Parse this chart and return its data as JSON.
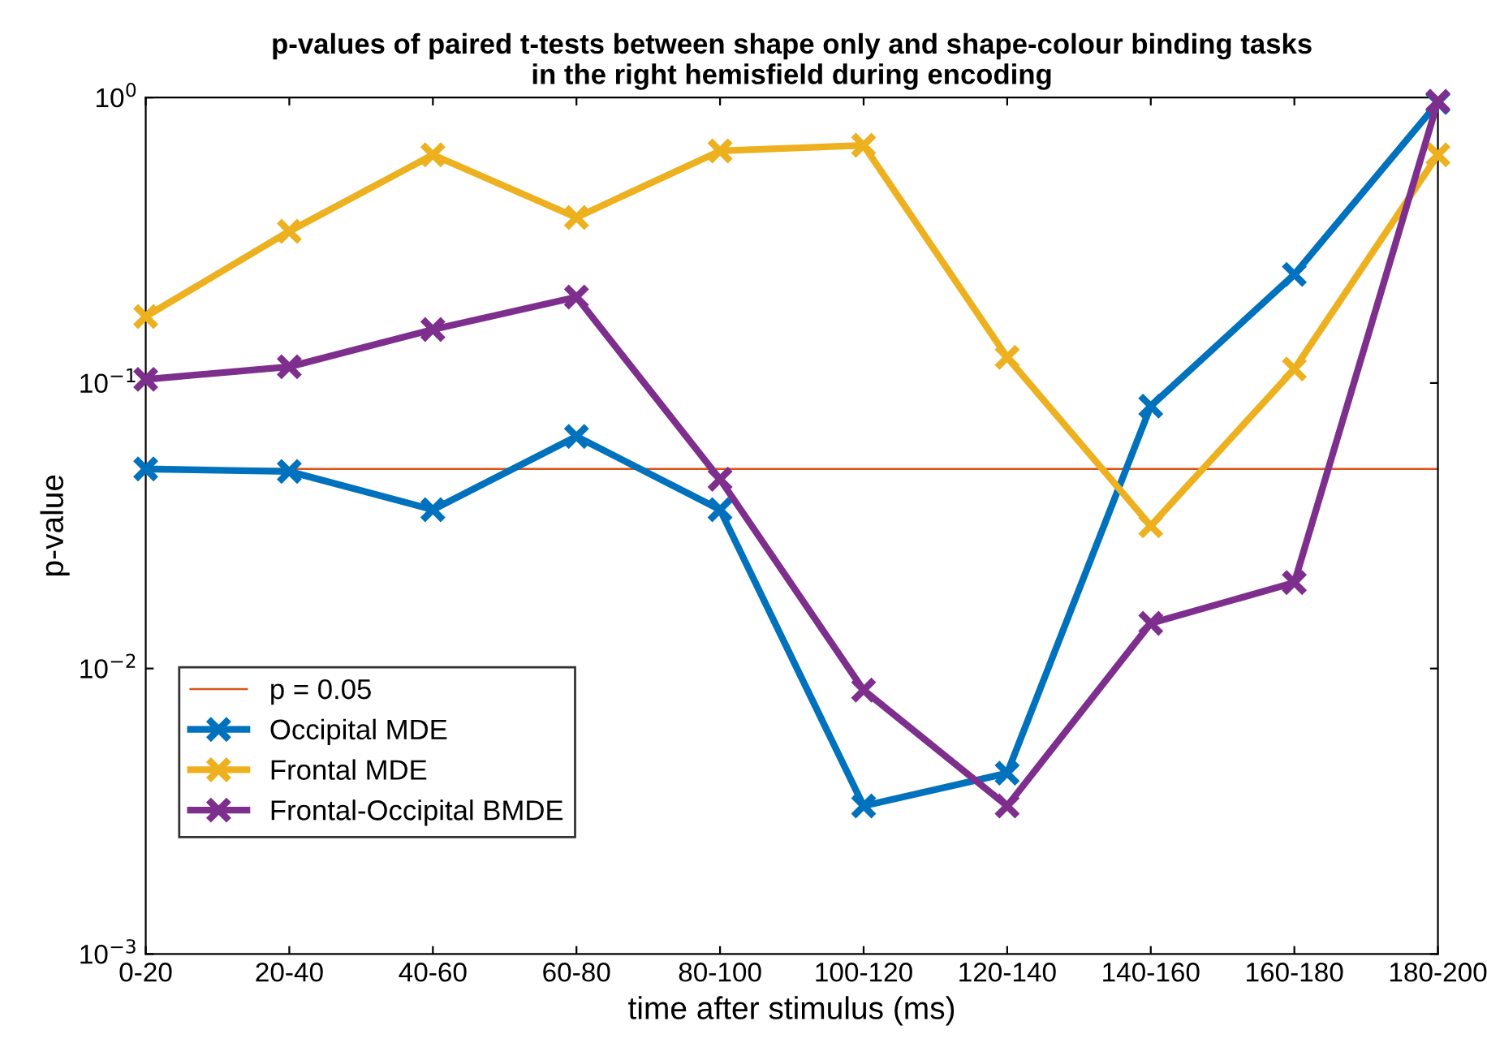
{
  "chart_data": {
    "type": "line",
    "title": "p-values of paired t-tests between shape only and shape-colour binding tasks\nin the right hemisfield during encoding",
    "xlabel": "time after stimulus (ms)",
    "ylabel": "p-value",
    "categories": [
      "0-20",
      "20-40",
      "40-60",
      "60-80",
      "80-100",
      "100-120",
      "120-140",
      "140-160",
      "160-180",
      "180-200"
    ],
    "series": [
      {
        "name": "Occipital MDE",
        "color": "#0072bd",
        "values": [
          0.05,
          0.049,
          0.036,
          0.065,
          0.036,
          0.0033,
          0.0043,
          0.083,
          0.24,
          0.96
        ]
      },
      {
        "name": "Frontal MDE",
        "color": "#edb120",
        "values": [
          0.171,
          0.34,
          0.63,
          0.38,
          0.65,
          0.68,
          0.123,
          0.0316,
          0.112,
          0.63
        ]
      },
      {
        "name": "Frontal-Occipital BMDE",
        "color": "#7e2f8e",
        "values": [
          0.103,
          0.114,
          0.154,
          0.2,
          0.046,
          0.0084,
          0.0033,
          0.0144,
          0.02,
          0.97
        ]
      }
    ],
    "log": "y",
    "ylim": [
      0.001,
      1
    ],
    "yticks": [
      {
        "value": 0.001,
        "label": "10$^{−3}$"
      },
      {
        "value": 0.01,
        "label": "10$^{−2}$"
      },
      {
        "value": 0.1,
        "label": "10$^{−1}$"
      },
      {
        "value": 1,
        "label": "10$^{0}$"
      }
    ],
    "ref_lines": [
      {
        "axis": "y",
        "value": 0.05,
        "label": "p = 0.05",
        "color": "#d95319"
      }
    ],
    "marker": "cross",
    "line_style": "solid",
    "grid": false,
    "legend": "bottom left"
  }
}
